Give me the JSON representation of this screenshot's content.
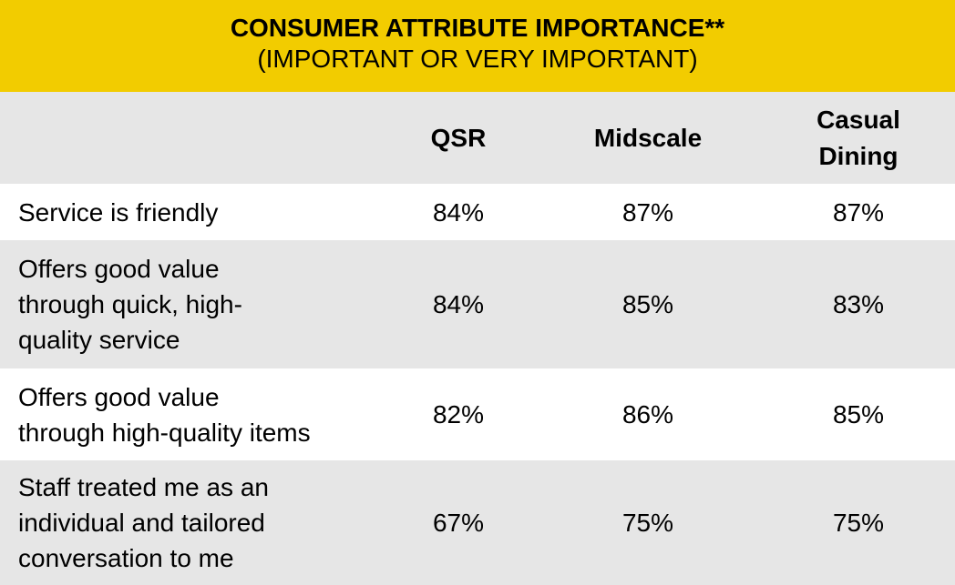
{
  "header": {
    "title": "CONSUMER ATTRIBUTE IMPORTANCE**",
    "subtitle": "(IMPORTANT OR VERY IMPORTANT)"
  },
  "table": {
    "columns": [
      "QSR",
      "Midscale",
      [
        "Casual",
        "Dining"
      ]
    ],
    "rows": [
      {
        "label": [
          "Service is friendly"
        ],
        "values": [
          "84%",
          "87%",
          "87%"
        ]
      },
      {
        "label": [
          "Offers good value",
          "through quick, high-",
          "quality service"
        ],
        "values": [
          "84%",
          "85%",
          "83%"
        ]
      },
      {
        "label": [
          "Offers good value",
          "through high-quality items"
        ],
        "values": [
          "82%",
          "86%",
          "85%"
        ]
      },
      {
        "label": [
          "Staff treated me as an",
          "individual and tailored",
          "conversation to me"
        ],
        "values": [
          "67%",
          "75%",
          "75%"
        ]
      }
    ]
  }
}
